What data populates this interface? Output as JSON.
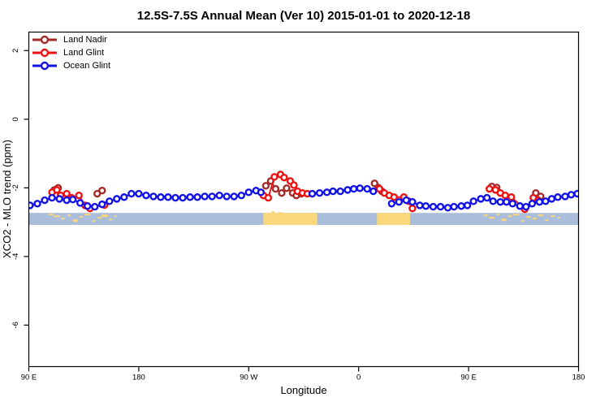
{
  "chart_data": {
    "type": "line",
    "title": "12.5S-7.5S Annual Mean (Ver 10)   2015-01-01 to 2020-12-18",
    "xlabel": "Longitude",
    "ylabel": "XCO2 - MLO trend (ppm)",
    "grid": false,
    "legend_position": "top-left",
    "x_axis": {
      "range": [
        90,
        540
      ],
      "ticks": [
        {
          "label": "90 E",
          "lon": 90
        },
        {
          "label": "180",
          "lon": 180
        },
        {
          "label": "90 W",
          "lon": 270
        },
        {
          "label": "0",
          "lon": 360
        },
        {
          "label": "90 E",
          "lon": 450
        },
        {
          "label": "180",
          "lon": 540
        }
      ]
    },
    "y_axis": {
      "range": [
        -7.21,
        2.54
      ],
      "ticks": [
        {
          "label": "2",
          "value": 2
        },
        {
          "label": "0",
          "value": 0
        },
        {
          "label": "-2",
          "value": -2
        },
        {
          "label": "-4",
          "value": -4
        },
        {
          "label": "-6",
          "value": -6
        }
      ]
    },
    "series": [
      {
        "name": "Land Nadir",
        "color": "#A52A2A",
        "marker": "open-circle",
        "segments": [
          [
            [
              111,
              -2.06
            ],
            [
              114,
              -2.0
            ]
          ],
          [
            [
              146,
              -2.17
            ],
            [
              150,
              -2.08
            ]
          ],
          [
            [
              284,
              -1.94
            ],
            [
              288,
              -1.8
            ],
            [
              292,
              -2.03
            ],
            [
              297,
              -2.15
            ],
            [
              301,
              -2.01
            ],
            [
              306,
              -2.15
            ],
            [
              309,
              -2.22
            ],
            [
              313,
              -2.17
            ]
          ],
          [
            [
              373,
              -1.87
            ],
            [
              376,
              -1.99
            ],
            [
              379,
              -2.1
            ]
          ],
          [
            [
              469,
              -1.96
            ],
            [
              473,
              -1.99
            ]
          ],
          [
            [
              505,
              -2.15
            ],
            [
              509,
              -2.25
            ]
          ]
        ]
      },
      {
        "name": "Land Glint",
        "color": "#EE1111",
        "marker": "open-circle",
        "segments": [
          [
            [
              109,
              -2.13
            ],
            [
              113,
              -2.06
            ],
            [
              116,
              -2.22
            ],
            [
              121,
              -2.17
            ],
            [
              125,
              -2.29
            ],
            [
              131,
              -2.22
            ],
            [
              136,
              -2.51
            ],
            [
              140,
              -2.6
            ]
          ],
          [
            [
              152,
              -2.5
            ]
          ],
          [
            [
              282,
              -2.22
            ],
            [
              286,
              -2.29
            ],
            [
              291,
              -1.68
            ],
            [
              296,
              -1.61
            ],
            [
              299,
              -1.7
            ],
            [
              304,
              -1.8
            ],
            [
              307,
              -1.92
            ],
            [
              310,
              -2.1
            ],
            [
              314,
              -2.15
            ],
            [
              318,
              -2.17
            ]
          ],
          [
            [
              377,
              -2.03
            ],
            [
              381,
              -2.15
            ],
            [
              385,
              -2.22
            ],
            [
              389,
              -2.27
            ],
            [
              397,
              -2.27
            ],
            [
              401,
              -2.39
            ],
            [
              404,
              -2.6
            ]
          ],
          [
            [
              467,
              -2.03
            ],
            [
              472,
              -2.06
            ],
            [
              476,
              -2.15
            ],
            [
              480,
              -2.22
            ],
            [
              485,
              -2.27
            ],
            [
              496,
              -2.62
            ]
          ],
          [
            [
              503,
              -2.29
            ],
            [
              507,
              -2.36
            ]
          ]
        ]
      },
      {
        "name": "Ocean Glint",
        "color": "#1212E8",
        "marker": "open-circle",
        "segments": [
          [
            [
              91,
              -2.51
            ],
            [
              97,
              -2.46
            ],
            [
              103,
              -2.36
            ],
            [
              109,
              -2.29
            ],
            [
              115,
              -2.32
            ],
            [
              121,
              -2.36
            ],
            [
              126,
              -2.34
            ],
            [
              132,
              -2.44
            ],
            [
              138,
              -2.53
            ],
            [
              144,
              -2.55
            ],
            [
              150,
              -2.48
            ],
            [
              156,
              -2.39
            ],
            [
              162,
              -2.32
            ],
            [
              168,
              -2.27
            ],
            [
              174,
              -2.17
            ],
            [
              180,
              -2.17
            ],
            [
              186,
              -2.22
            ],
            [
              192,
              -2.25
            ],
            [
              198,
              -2.27
            ],
            [
              204,
              -2.27
            ],
            [
              210,
              -2.29
            ],
            [
              216,
              -2.29
            ],
            [
              222,
              -2.27
            ],
            [
              228,
              -2.27
            ],
            [
              234,
              -2.25
            ],
            [
              240,
              -2.25
            ],
            [
              246,
              -2.22
            ],
            [
              252,
              -2.25
            ],
            [
              258,
              -2.25
            ],
            [
              264,
              -2.22
            ],
            [
              270,
              -2.13
            ],
            [
              276,
              -2.08
            ],
            [
              280,
              -2.13
            ]
          ],
          [
            [
              322,
              -2.17
            ],
            [
              328,
              -2.15
            ],
            [
              334,
              -2.13
            ],
            [
              339,
              -2.1
            ],
            [
              345,
              -2.1
            ],
            [
              351,
              -2.06
            ],
            [
              356,
              -2.03
            ],
            [
              361,
              -2.01
            ],
            [
              367,
              -2.03
            ],
            [
              372,
              -2.1
            ]
          ],
          [
            [
              387,
              -2.46
            ],
            [
              393,
              -2.41
            ],
            [
              399,
              -2.36
            ],
            [
              404,
              -2.41
            ],
            [
              410,
              -2.51
            ],
            [
              415,
              -2.53
            ],
            [
              421,
              -2.55
            ],
            [
              427,
              -2.55
            ],
            [
              433,
              -2.58
            ],
            [
              438,
              -2.55
            ],
            [
              444,
              -2.53
            ],
            [
              449,
              -2.51
            ],
            [
              454,
              -2.39
            ],
            [
              460,
              -2.32
            ],
            [
              465,
              -2.29
            ],
            [
              470,
              -2.39
            ],
            [
              476,
              -2.41
            ],
            [
              481,
              -2.41
            ],
            [
              486,
              -2.46
            ],
            [
              492,
              -2.53
            ],
            [
              497,
              -2.55
            ],
            [
              502,
              -2.46
            ],
            [
              508,
              -2.41
            ],
            [
              513,
              -2.39
            ],
            [
              518,
              -2.32
            ],
            [
              523,
              -2.27
            ],
            [
              529,
              -2.25
            ],
            [
              534,
              -2.2
            ],
            [
              539,
              -2.17
            ]
          ]
        ]
      }
    ],
    "surface_strip": {
      "description": "ocean/land strip map along latitude band",
      "top_value": -2.73,
      "bottom_value": -3.08,
      "ocean_color": "#AABEDC",
      "land_color": "#FBD77C",
      "land_segments": [
        [
          282,
          326
        ],
        [
          375,
          402
        ]
      ],
      "island_specks": [
        {
          "lon": 108,
          "w": 6,
          "h": 2,
          "dy": 1
        },
        {
          "lon": 113,
          "w": 8,
          "h": 2,
          "dy": 3
        },
        {
          "lon": 118,
          "w": 5,
          "h": 2,
          "dy": 6
        },
        {
          "lon": 123,
          "w": 4,
          "h": 2,
          "dy": 2
        },
        {
          "lon": 128,
          "w": 6,
          "h": 3,
          "dy": 8
        },
        {
          "lon": 133,
          "w": 4,
          "h": 2,
          "dy": 4
        },
        {
          "lon": 138,
          "w": 7,
          "h": 2,
          "dy": 1
        },
        {
          "lon": 143,
          "w": 4,
          "h": 2,
          "dy": 9
        },
        {
          "lon": 148,
          "w": 5,
          "h": 2,
          "dy": 5
        },
        {
          "lon": 152,
          "w": 8,
          "h": 3,
          "dy": 2
        },
        {
          "lon": 157,
          "w": 4,
          "h": 2,
          "dy": 7
        },
        {
          "lon": 161,
          "w": 3,
          "h": 2,
          "dy": 3
        },
        {
          "lon": 290,
          "w": 4,
          "h": 2,
          "dy": -2
        },
        {
          "lon": 296,
          "w": 5,
          "h": 2,
          "dy": -1
        },
        {
          "lon": 464,
          "w": 5,
          "h": 2,
          "dy": 2
        },
        {
          "lon": 469,
          "w": 7,
          "h": 2,
          "dy": 5
        },
        {
          "lon": 474,
          "w": 4,
          "h": 2,
          "dy": 1
        },
        {
          "lon": 479,
          "w": 6,
          "h": 3,
          "dy": 7
        },
        {
          "lon": 484,
          "w": 5,
          "h": 2,
          "dy": 3
        },
        {
          "lon": 489,
          "w": 8,
          "h": 2,
          "dy": 1
        },
        {
          "lon": 494,
          "w": 4,
          "h": 2,
          "dy": 9
        },
        {
          "lon": 499,
          "w": 6,
          "h": 2,
          "dy": 4
        },
        {
          "lon": 504,
          "w": 5,
          "h": 2,
          "dy": 6
        },
        {
          "lon": 509,
          "w": 7,
          "h": 2,
          "dy": 2
        },
        {
          "lon": 514,
          "w": 4,
          "h": 2,
          "dy": 8
        },
        {
          "lon": 519,
          "w": 5,
          "h": 2,
          "dy": 3
        },
        {
          "lon": 524,
          "w": 3,
          "h": 2,
          "dy": 5
        }
      ]
    }
  }
}
